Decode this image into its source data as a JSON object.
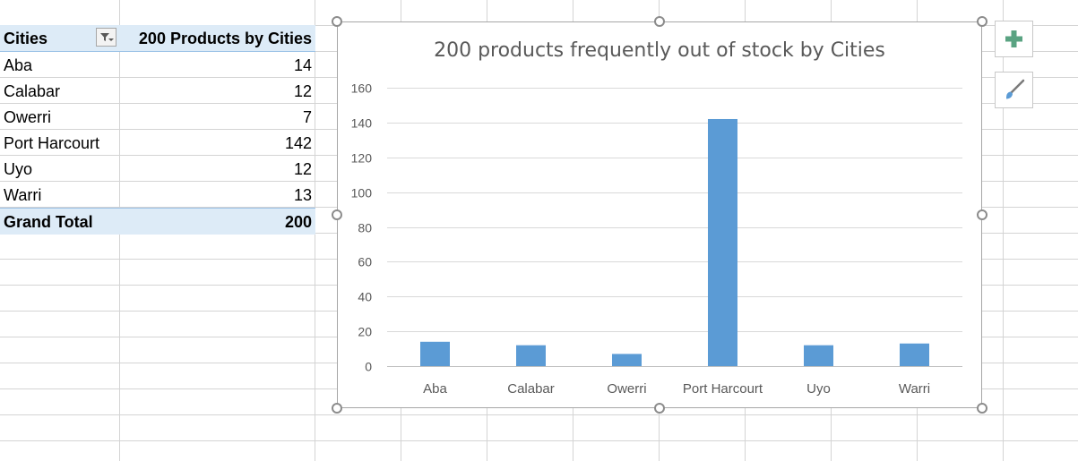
{
  "pivot": {
    "header": {
      "row_label": "Cities",
      "value_label": "200 Products by Cities"
    },
    "rows": [
      {
        "city": "Aba",
        "count": "14"
      },
      {
        "city": "Calabar",
        "count": "12"
      },
      {
        "city": "Owerri",
        "count": "7"
      },
      {
        "city": "Port Harcourt",
        "count": "142"
      },
      {
        "city": "Uyo",
        "count": "12"
      },
      {
        "city": "Warri",
        "count": "13"
      }
    ],
    "total": {
      "label": "Grand Total",
      "count": "200"
    }
  },
  "side_buttons": {
    "add_icon": "plus-icon",
    "style_icon": "paintbrush-icon"
  },
  "colors": {
    "bar": "#5b9bd5",
    "header_fill": "#ddebf7",
    "accent_green": "#5aa382"
  },
  "chart_data": {
    "type": "bar",
    "title": "200 products frequently out of stock by Cities",
    "categories": [
      "Aba",
      "Calabar",
      "Owerri",
      "Port Harcourt",
      "Uyo",
      "Warri"
    ],
    "values": [
      14,
      12,
      7,
      142,
      12,
      13
    ],
    "xlabel": "",
    "ylabel": "",
    "ylim": [
      0,
      160
    ],
    "yticks": [
      0,
      20,
      40,
      60,
      80,
      100,
      120,
      140,
      160
    ],
    "grid": true,
    "legend": "none"
  }
}
